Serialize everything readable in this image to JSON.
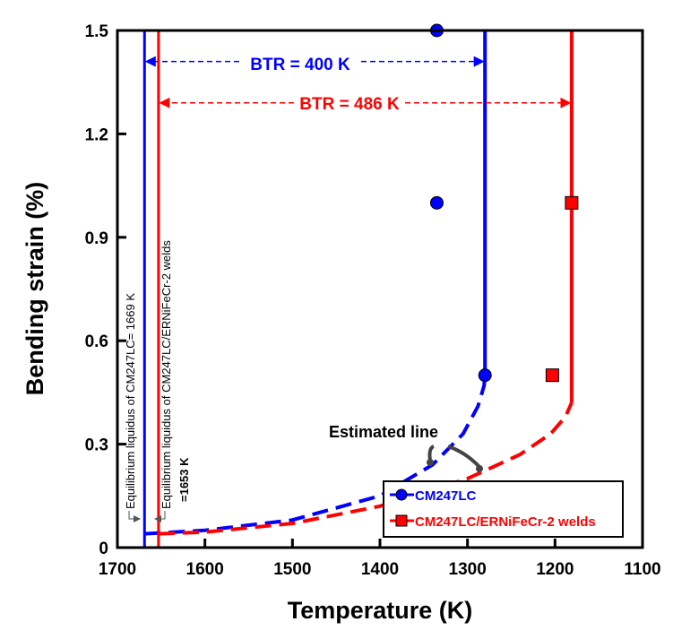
{
  "chart_data": {
    "type": "scatter",
    "title": "",
    "xlabel": "Temperature (K)",
    "ylabel": "Bending strain (%)",
    "xlim": [
      1700,
      1100
    ],
    "ylim": [
      0,
      1.5
    ],
    "xticks": [
      1700,
      1600,
      1500,
      1400,
      1300,
      1200,
      1100
    ],
    "yticks": [
      0,
      0.3,
      0.6,
      0.9,
      1.2,
      1.5
    ],
    "ytick_labels": [
      "0",
      "0.3",
      "0.6",
      "0.9",
      "1.2",
      "1.5"
    ],
    "grid": false,
    "legend_position": "bottom-right",
    "series": [
      {
        "name": "CM247LC",
        "color": "#0000ff",
        "marker": "circle",
        "points": [
          [
            1335,
            1.5
          ],
          [
            1335,
            1.0
          ],
          [
            1280,
            0.5
          ]
        ],
        "liquidus": 1669,
        "btr_end": 1280,
        "estimated_line": [
          [
            1669,
            0.04
          ],
          [
            1600,
            0.05
          ],
          [
            1500,
            0.08
          ],
          [
            1400,
            0.15
          ],
          [
            1340,
            0.24
          ],
          [
            1305,
            0.33
          ],
          [
            1288,
            0.41
          ],
          [
            1281,
            0.47
          ],
          [
            1280,
            0.5
          ]
        ]
      },
      {
        "name": "CM247LC/ERNiFeCr-2 welds",
        "color": "#ff0000",
        "marker": "square",
        "points": [
          [
            1181,
            1.0
          ],
          [
            1203,
            0.5
          ]
        ],
        "liquidus": 1653,
        "btr_end": 1181,
        "estimated_line": [
          [
            1653,
            0.04
          ],
          [
            1600,
            0.045
          ],
          [
            1500,
            0.07
          ],
          [
            1400,
            0.12
          ],
          [
            1300,
            0.2
          ],
          [
            1240,
            0.27
          ],
          [
            1205,
            0.33
          ],
          [
            1188,
            0.38
          ],
          [
            1181,
            0.42
          ]
        ]
      }
    ],
    "annotations": {
      "btr_blue": "BTR = 400 K",
      "btr_blue_y": 1.41,
      "btr_red": "BTR = 486 K",
      "btr_red_y": 1.29,
      "estimated": "Estimated line",
      "liquidus_blue": "Equilibrium liquidus of CM247LC= 1669 K",
      "liquidus_red_1": "Equilibrium liquidus of CM247LC/ERNiFeCr-2 welds",
      "liquidus_red_2": "=1653 K"
    }
  }
}
